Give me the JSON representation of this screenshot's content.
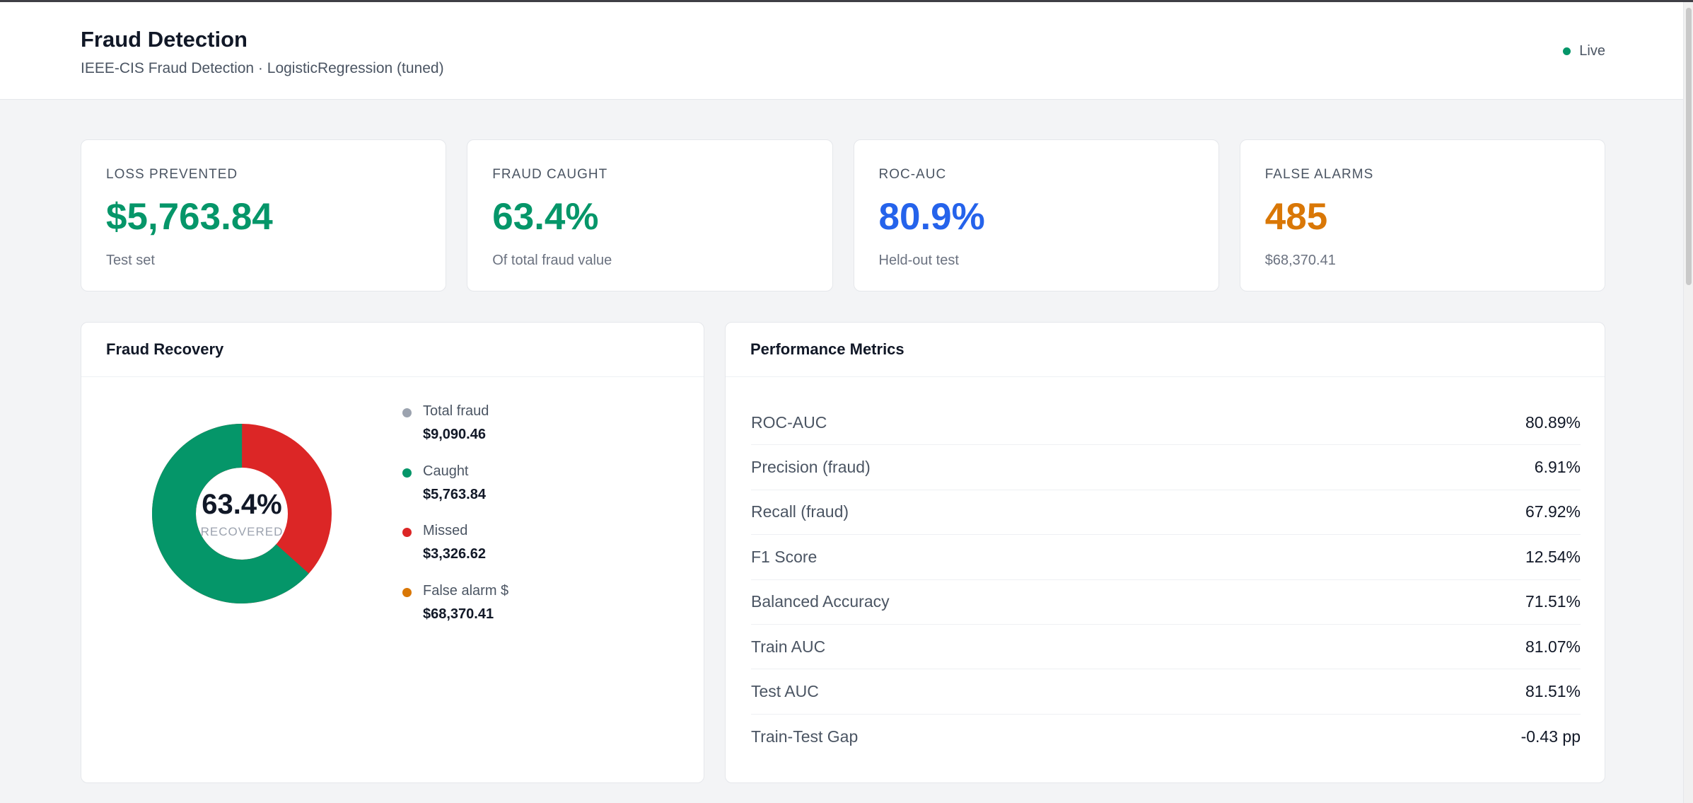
{
  "header": {
    "title": "Fraud Detection",
    "subtitle": "IEEE-CIS Fraud Detection · LogisticRegression (tuned)",
    "status": "Live",
    "status_color": "#059669"
  },
  "kpis": [
    {
      "label": "LOSS PREVENTED",
      "value": "$5,763.84",
      "sub": "Test set",
      "color": "#059669"
    },
    {
      "label": "FRAUD CAUGHT",
      "value": "63.4%",
      "sub": "Of total fraud value",
      "color": "#059669"
    },
    {
      "label": "ROC-AUC",
      "value": "80.9%",
      "sub": "Held-out test",
      "color": "#2563eb"
    },
    {
      "label": "FALSE ALARMS",
      "value": "485",
      "sub": "$68,370.41",
      "color": "#d97706"
    }
  ],
  "recovery": {
    "title": "Fraud Recovery",
    "center_value": "63.4%",
    "center_caption": "RECOVERED",
    "recovered_fraction": 0.634,
    "caught_color": "#059669",
    "missed_color": "#dc2626",
    "legend": [
      {
        "name": "Total fraud",
        "value": "$9,090.46",
        "color": "#9ca3af"
      },
      {
        "name": "Caught",
        "value": "$5,763.84",
        "color": "#059669"
      },
      {
        "name": "Missed",
        "value": "$3,326.62",
        "color": "#dc2626"
      },
      {
        "name": "False alarm $",
        "value": "$68,370.41",
        "color": "#d97706"
      }
    ]
  },
  "metrics": {
    "title": "Performance Metrics",
    "rows": [
      {
        "name": "ROC-AUC",
        "value": "80.89%"
      },
      {
        "name": "Precision (fraud)",
        "value": "6.91%"
      },
      {
        "name": "Recall (fraud)",
        "value": "67.92%"
      },
      {
        "name": "F1 Score",
        "value": "12.54%"
      },
      {
        "name": "Balanced Accuracy",
        "value": "71.51%"
      },
      {
        "name": "Train AUC",
        "value": "81.07%"
      },
      {
        "name": "Test AUC",
        "value": "81.51%"
      },
      {
        "name": "Train-Test Gap",
        "value": "-0.43 pp"
      }
    ]
  }
}
